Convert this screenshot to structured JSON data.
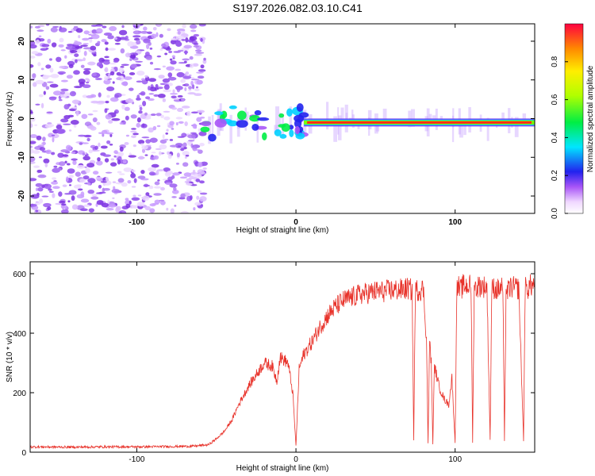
{
  "title": "S197.2026.082.03.10.C41",
  "colors": {
    "snr_line": "#e8322a",
    "background": "#ffffff",
    "axes": "#000000"
  },
  "chart_data": [
    {
      "type": "heatmap",
      "xlabel": "Height of straight line (km)",
      "ylabel": "Frequency (Hz)",
      "xlim": [
        -167,
        150
      ],
      "ylim": [
        -24.5,
        24.5
      ],
      "xticks": [
        -100,
        0,
        100
      ],
      "yticks": [
        20,
        10,
        0,
        -10,
        -20
      ],
      "colorbar": {
        "label": "Normalized spectral amplitude",
        "range": [
          0,
          1
        ],
        "ticks": [
          "0.0",
          "0.2",
          "0.4",
          "0.6",
          "0.8"
        ],
        "tick_values": [
          0.0,
          0.2,
          0.4,
          0.6,
          0.8
        ]
      },
      "description_points": {
        "noise_region_x": [
          -167,
          -60
        ],
        "signal_start_x": -60,
        "signal_freq_hz": -1.0,
        "strong_signal_x": [
          5,
          150
        ]
      }
    },
    {
      "type": "line",
      "xlabel": "Height of straight line (km)",
      "ylabel": "SNR (10 * v/v)",
      "xlim": [
        -167,
        150
      ],
      "ylim": [
        0,
        640
      ],
      "xticks": [
        -100,
        0,
        100
      ],
      "yticks": [
        0,
        200,
        400,
        600
      ],
      "series": [
        {
          "name": "SNR",
          "x": [
            -167,
            -140,
            -120,
            -100,
            -80,
            -65,
            -55,
            -50,
            -45,
            -40,
            -36,
            -30,
            -25,
            -20,
            -15,
            -12,
            -10,
            -5,
            -2,
            0,
            2,
            5,
            10,
            15,
            20,
            25,
            30,
            35,
            40,
            45,
            50,
            55,
            60,
            65,
            70,
            73,
            74,
            75,
            76,
            78,
            80,
            82,
            83,
            84,
            85,
            86,
            87,
            90,
            93,
            96,
            98,
            100,
            101,
            102,
            103,
            105,
            110,
            111,
            112,
            113,
            115,
            120,
            122,
            123,
            124,
            126,
            130,
            131,
            132,
            133,
            135,
            140,
            143,
            144,
            145,
            147,
            150
          ],
          "values": [
            18,
            17,
            18,
            18,
            19,
            20,
            25,
            45,
            70,
            110,
            160,
            220,
            260,
            300,
            290,
            240,
            320,
            300,
            200,
            20,
            280,
            330,
            370,
            420,
            460,
            490,
            510,
            520,
            530,
            535,
            540,
            540,
            545,
            545,
            550,
            545,
            40,
            540,
            545,
            545,
            550,
            380,
            30,
            380,
            300,
            30,
            290,
            220,
            180,
            160,
            250,
            30,
            540,
            560,
            540,
            560,
            560,
            35,
            560,
            550,
            560,
            555,
            40,
            540,
            555,
            545,
            555,
            35,
            545,
            540,
            555,
            550,
            40,
            555,
            545,
            560,
            560
          ]
        }
      ]
    }
  ]
}
